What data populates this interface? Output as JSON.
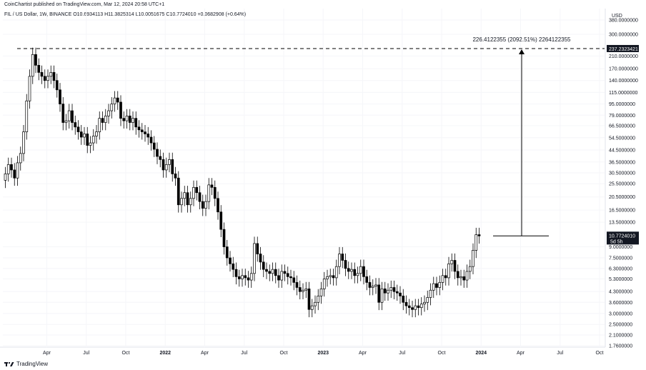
{
  "header": {
    "published": "CoinChartist published on TradingView.com, Mar 12, 2024 20:58 UTC+1"
  },
  "symbol_line": {
    "name": "FIL / US Dollar, 1W, BINANCE",
    "open": "O10.6934113",
    "high": "H11.3825314",
    "low": "L10.0051675",
    "close": "C10.7724010",
    "change": "+0.0682908 (+0.64%)"
  },
  "currency": "USD",
  "footer": {
    "brand": "TradingView"
  },
  "colors": {
    "up": "#ffffff",
    "down": "#000000",
    "outline": "#000000",
    "grid": "#f0f3fa",
    "axis_text": "#131722"
  },
  "chart_data": {
    "type": "candlestick",
    "scale": "log",
    "y_ticks": [
      "380.0000000",
      "300.0000000",
      "210.0000000",
      "170.0000000",
      "140.0000000",
      "115.0000000",
      "95.0000000",
      "79.0000000",
      "66.5000000",
      "54.5000000",
      "44.5000000",
      "36.5000000",
      "30.5000000",
      "25.5000000",
      "20.5000000",
      "16.5000000",
      "13.5000000",
      "9.0000000",
      "7.5000000",
      "6.3000000",
      "5.3000000",
      "4.3000000",
      "3.6000000",
      "3.0000000",
      "2.5000000",
      "2.1000000",
      "1.7600000"
    ],
    "x_ticks": [
      "Apr",
      "Jul",
      "Oct",
      "2022",
      "Apr",
      "Jul",
      "Oct",
      "2023",
      "Apr",
      "Jul",
      "Oct",
      "2024",
      "Apr",
      "Jul",
      "Oct"
    ],
    "bold_x_ticks": [
      "2022",
      "2023",
      "2024"
    ],
    "high_line": {
      "value": 237.2323421,
      "label": "237.2323421"
    },
    "current_price": {
      "value": 10.772401,
      "label": "10.7724010",
      "countdown": "5d 5h"
    },
    "measure_label": "226.4122355 (2092.51%) 2264122355",
    "weekly_closes_approx": [
      30,
      35,
      32,
      28,
      36,
      42,
      60,
      100,
      150,
      215,
      180,
      160,
      150,
      140,
      150,
      160,
      140,
      120,
      95,
      70,
      72,
      85,
      70,
      65,
      60,
      55,
      58,
      48,
      50,
      56,
      60,
      75,
      70,
      78,
      85,
      95,
      105,
      98,
      75,
      72,
      78,
      70,
      75,
      65,
      62,
      60,
      58,
      55,
      50,
      45,
      40,
      38,
      32,
      35,
      38,
      30,
      28,
      18,
      20,
      22,
      18,
      20,
      24,
      22,
      19,
      17,
      19,
      25,
      24,
      20,
      16,
      12,
      9,
      7.5,
      6.8,
      6.2,
      5.5,
      5.3,
      5.6,
      5.4,
      5.2,
      5.8,
      9.5,
      8.0,
      7.0,
      6.2,
      6.0,
      5.8,
      6.2,
      5.6,
      5.2,
      6.0,
      5.8,
      5.5,
      5.4,
      5.0,
      4.6,
      4.3,
      4.4,
      4.5,
      3.2,
      3.4,
      3.6,
      4.0,
      4.5,
      5.3,
      5.5,
      5.6,
      5.4,
      6.5,
      8.0,
      7.2,
      6.3,
      6.0,
      6.2,
      5.6,
      5.8,
      6.5,
      5.5,
      5.0,
      4.6,
      4.7,
      4.8,
      3.6,
      4.5,
      4.2,
      4.4,
      4.6,
      4.3,
      4.2,
      4.0,
      3.6,
      3.4,
      3.3,
      3.2,
      3.4,
      3.3,
      3.5,
      3.6,
      3.9,
      4.4,
      4.9,
      4.6,
      5.0,
      5.6,
      5.4,
      6.8,
      7.2,
      6.0,
      5.4,
      5.5,
      5.2,
      6.0,
      6.5,
      8.5,
      11.0,
      10.77
    ],
    "ylim": [
      1.76,
      380
    ]
  }
}
